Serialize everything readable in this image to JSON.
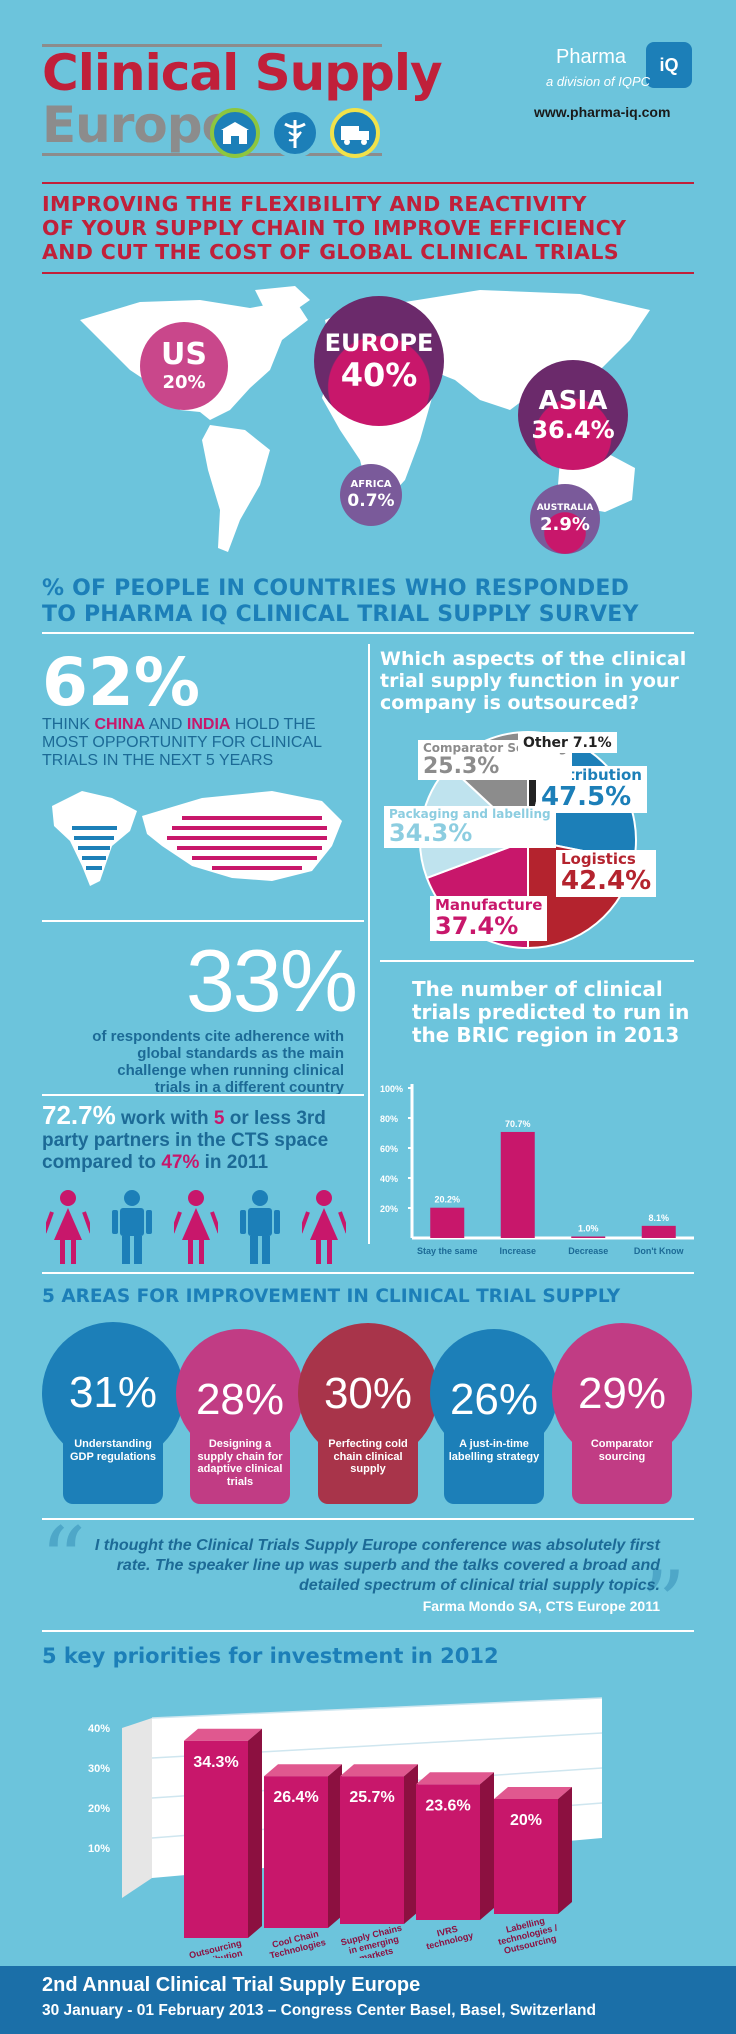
{
  "header": {
    "logo_line1": "Clinical Supply",
    "logo_line2": "Europe",
    "brand": "Pharma",
    "brand_badge": "iQ",
    "brand_sub": "a division of IQPC",
    "url": "www.pharma-iq.com"
  },
  "headline": [
    "IMPROVING THE FLEXIBILITY AND REACTIVITY",
    "OF YOUR SUPPLY CHAIN TO IMPROVE EFFICIENCY",
    "AND CUT THE COST OF GLOBAL CLINICAL TRIALS"
  ],
  "map": {
    "regions": [
      {
        "name": "US",
        "value": "20%"
      },
      {
        "name": "EUROPE",
        "value": "40%"
      },
      {
        "name": "ASIA",
        "value": "36.4%"
      },
      {
        "name": "AFRICA",
        "value": "0.7%"
      },
      {
        "name": "AUSTRALIA",
        "value": "2.9%"
      }
    ],
    "caption": [
      "% OF PEOPLE IN COUNTRIES WHO RESPONDED",
      "TO PHARMA IQ CLINICAL TRIAL SUPPLY SURVEY"
    ]
  },
  "stat62": {
    "value": "62%",
    "text_pre": "THINK ",
    "china": "CHINA",
    "and": " AND ",
    "india": "INDIA",
    "text_post": " HOLD THE MOST OPPORTUNITY FOR CLINICAL TRIALS IN THE NEXT 5 YEARS"
  },
  "stat33": {
    "value": "33%",
    "text": "of respondents cite adherence with global standards as the main challenge when running clinical trials in a different country"
  },
  "stat72": {
    "value": "72.7%",
    "t1": " work with ",
    "five": "5",
    "t2": " or less 3rd party partners in the CTS space compared to ",
    "pct47": "47%",
    "t3": " in 2011"
  },
  "colors": {
    "background": "#6cc4dc",
    "magenta": "#c8176b",
    "dark_red": "#b4232e",
    "blue": "#1c7fb8",
    "purple": "#6b2a6b",
    "grey": "#8c8c8c",
    "brand_red": "#c0203a"
  },
  "icons": [
    "warehouse-icon",
    "caduceus-icon",
    "truck-icon",
    "woman-icon",
    "man-icon",
    "quote-icon"
  ],
  "chart_data": [
    {
      "type": "pie",
      "title": "Which aspects of the clinical trial supply function in your company is outsourced?",
      "series": [
        {
          "name": "Distribution",
          "value": 47.5,
          "label": "47.5%",
          "color": "#1c7fb8"
        },
        {
          "name": "Logistics",
          "value": 42.4,
          "label": "42.4%",
          "color": "#b4232e"
        },
        {
          "name": "Manufacture",
          "value": 37.4,
          "label": "37.4%",
          "color": "#c8176b"
        },
        {
          "name": "Packaging and labelling",
          "value": 34.3,
          "label": "34.3%",
          "color": "#bfe3ee"
        },
        {
          "name": "Comparator Sourcing",
          "value": 25.3,
          "label": "25.3%",
          "color": "#8c8c8c"
        },
        {
          "name": "Other",
          "value": 7.1,
          "label": "7.1%",
          "color": "#222222"
        }
      ]
    },
    {
      "type": "bar",
      "title": "The number of clinical trials predicted to run in the BRIC region in 2013",
      "categories": [
        "Stay the same",
        "Increase",
        "Decrease",
        "Don't Know"
      ],
      "values": [
        20.2,
        70.7,
        1.0,
        8.1
      ],
      "value_labels": [
        "20.2%",
        "70.7%",
        "1.0%",
        "8.1%"
      ],
      "yticks": [
        "20%",
        "40%",
        "60%",
        "80%",
        "100%"
      ],
      "ylim": [
        0,
        100
      ]
    },
    {
      "type": "bar",
      "title": "5 AREAS FOR IMPROVEMENT IN CLINICAL TRIAL SUPPLY",
      "categories": [
        "Understanding GDP regulations",
        "Designing a supply chain for adaptive clinical trials",
        "Perfecting cold chain clinical supply",
        "A just-in-time labelling strategy",
        "Comparator sourcing"
      ],
      "values": [
        31,
        28,
        30,
        26,
        29
      ],
      "value_labels": [
        "31%",
        "28%",
        "30%",
        "26%",
        "29%"
      ],
      "colors": [
        "#1c7fb8",
        "#c13c84",
        "#a8344a",
        "#1c7fb8",
        "#c13c84"
      ]
    },
    {
      "type": "bar",
      "title": "5 key priorities for investment in 2012",
      "categories": [
        "Outsourcing Distribution and Logistics",
        "Cool Chain Technologies",
        "Supply Chains in emerging markets",
        "IVRS technology",
        "Labelling technologies / Outsourcing"
      ],
      "values": [
        34.3,
        26.4,
        25.7,
        23.6,
        20
      ],
      "value_labels": [
        "34.3%",
        "26.4%",
        "25.7%",
        "23.6%",
        "20%"
      ],
      "yticks": [
        "10%",
        "20%",
        "30%",
        "40%"
      ],
      "ylim": [
        0,
        40
      ]
    }
  ],
  "quote": {
    "text": "I thought the Clinical Trials Supply Europe conference was absolutely first rate. The speaker line up was superb and the talks covered a broad and detailed spectrum of clinical trial supply topics.",
    "attribution": "Farma Mondo SA, CTS Europe 2011"
  },
  "footer": {
    "line1": "2nd Annual Clinical Trial Supply Europe",
    "line2": "30 January - 01 February 2013 – Congress Center Basel, Basel, Switzerland"
  }
}
